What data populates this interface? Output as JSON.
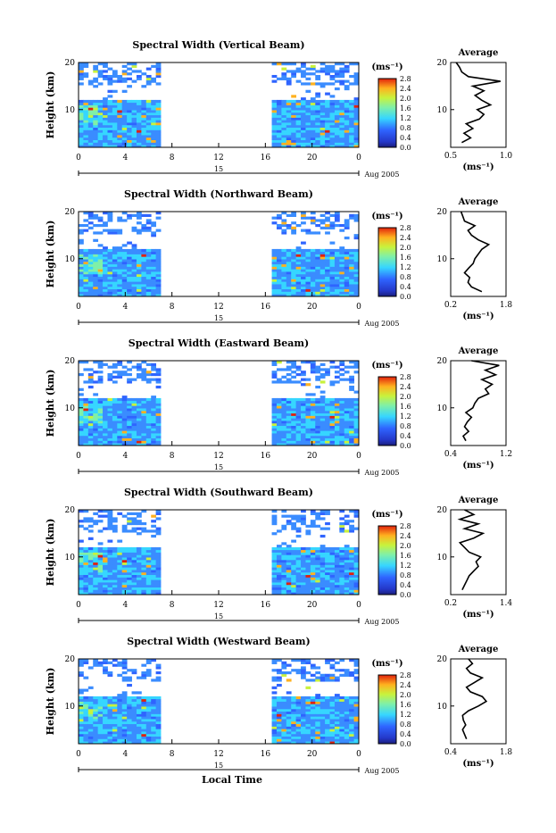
{
  "figure": {
    "xlabel": "Local Time",
    "colorbar_unit": "(ms⁻¹)",
    "colorbar_ticks": [
      "0.0",
      "0.4",
      "0.8",
      "1.2",
      "1.6",
      "2.0",
      "2.4",
      "2.8"
    ],
    "date_label": "Aug 2005",
    "day_label": "15",
    "height_label": "Height (km)",
    "profile_title": "Average",
    "profile_unit": "(ms⁻¹)",
    "colors": {
      "low": "#1b1e7a",
      "mid_low": "#2f64ff",
      "mid": "#36d6ff",
      "mid_high": "#c8f23c",
      "high": "#ffb11f",
      "max": "#e2210c"
    }
  },
  "chart_data": [
    {
      "type": "heatmap",
      "title": "Spectral Width (Vertical Beam)",
      "x_ticks": [
        "0",
        "4",
        "8",
        "12",
        "16",
        "20",
        "0"
      ],
      "y_ticks": [
        "10",
        "20"
      ],
      "xlim": [
        0,
        24
      ],
      "ylim": [
        2,
        20
      ],
      "data_gap_hours": [
        7,
        16.5
      ],
      "colorbar_range": [
        0.0,
        2.8
      ],
      "profile": {
        "title": "Average",
        "x_ticks": [
          "0.5",
          "1.0"
        ],
        "xlim": [
          0.5,
          1.0
        ],
        "heights_km": [
          3,
          4,
          5,
          6,
          7,
          8,
          9,
          10,
          11,
          12,
          13,
          14,
          15,
          16,
          17,
          18,
          19,
          20
        ],
        "values": [
          0.6,
          0.68,
          0.62,
          0.7,
          0.64,
          0.76,
          0.8,
          0.74,
          0.86,
          0.78,
          0.72,
          0.8,
          0.7,
          0.95,
          0.66,
          0.6,
          0.58,
          0.55
        ]
      }
    },
    {
      "type": "heatmap",
      "title": "Spectral Width (Northward Beam)",
      "x_ticks": [
        "0",
        "4",
        "8",
        "12",
        "16",
        "20",
        "0"
      ],
      "y_ticks": [
        "10",
        "20"
      ],
      "xlim": [
        0,
        24
      ],
      "ylim": [
        2,
        20
      ],
      "data_gap_hours": [
        7,
        16.5
      ],
      "colorbar_range": [
        0.0,
        2.8
      ],
      "profile": {
        "title": "Average",
        "x_ticks": [
          "0.2",
          "1.8"
        ],
        "xlim": [
          0.2,
          1.8
        ],
        "heights_km": [
          3,
          4,
          5,
          6,
          7,
          8,
          9,
          10,
          11,
          12,
          13,
          14,
          15,
          16,
          17,
          18,
          19,
          20
        ],
        "values": [
          1.1,
          0.8,
          0.7,
          0.75,
          0.6,
          0.72,
          0.85,
          0.9,
          1.0,
          1.1,
          1.3,
          1.0,
          0.8,
          0.7,
          0.9,
          0.6,
          0.55,
          0.5
        ]
      }
    },
    {
      "type": "heatmap",
      "title": "Spectral Width (Eastward Beam)",
      "x_ticks": [
        "0",
        "4",
        "8",
        "12",
        "16",
        "20",
        "0"
      ],
      "y_ticks": [
        "10",
        "20"
      ],
      "xlim": [
        0,
        24
      ],
      "ylim": [
        2,
        20
      ],
      "data_gap_hours": [
        7,
        16.5
      ],
      "colorbar_range": [
        0.0,
        2.8
      ],
      "profile": {
        "title": "Average",
        "x_ticks": [
          "0.4",
          "1.2"
        ],
        "xlim": [
          0.4,
          1.2
        ],
        "heights_km": [
          3,
          4,
          5,
          6,
          7,
          8,
          9,
          10,
          11,
          12,
          13,
          14,
          15,
          16,
          17,
          18,
          19,
          20
        ],
        "values": [
          0.62,
          0.58,
          0.66,
          0.6,
          0.64,
          0.7,
          0.62,
          0.72,
          0.75,
          0.8,
          0.95,
          0.9,
          1.0,
          0.85,
          1.05,
          0.9,
          1.1,
          0.7
        ]
      }
    },
    {
      "type": "heatmap",
      "title": "Spectral Width (Southward Beam)",
      "x_ticks": [
        "0",
        "4",
        "8",
        "12",
        "16",
        "20",
        "0"
      ],
      "y_ticks": [
        "10",
        "20"
      ],
      "xlim": [
        0,
        24
      ],
      "ylim": [
        2,
        20
      ],
      "data_gap_hours": [
        7,
        16.5
      ],
      "colorbar_range": [
        0.0,
        2.8
      ],
      "profile": {
        "title": "Average",
        "x_ticks": [
          "0.2",
          "1.4"
        ],
        "xlim": [
          0.2,
          1.4
        ],
        "heights_km": [
          3,
          4,
          5,
          6,
          7,
          8,
          9,
          10,
          11,
          12,
          13,
          14,
          15,
          16,
          17,
          18,
          19,
          20
        ],
        "values": [
          0.45,
          0.5,
          0.55,
          0.6,
          0.7,
          0.8,
          0.75,
          0.85,
          0.6,
          0.5,
          0.4,
          0.7,
          0.9,
          0.5,
          0.8,
          0.4,
          0.7,
          0.5
        ]
      }
    },
    {
      "type": "heatmap",
      "title": "Spectral Width (Westward Beam)",
      "x_ticks": [
        "0",
        "4",
        "8",
        "12",
        "16",
        "20",
        "0"
      ],
      "y_ticks": [
        "10",
        "20"
      ],
      "xlim": [
        0,
        24
      ],
      "ylim": [
        2,
        20
      ],
      "data_gap_hours": [
        7,
        16.5
      ],
      "colorbar_range": [
        0.0,
        2.8
      ],
      "profile": {
        "title": "Average",
        "x_ticks": [
          "0.4",
          "1.8"
        ],
        "xlim": [
          0.4,
          1.8
        ],
        "heights_km": [
          3,
          4,
          5,
          6,
          7,
          8,
          9,
          10,
          11,
          12,
          13,
          14,
          15,
          16,
          17,
          18,
          19,
          20
        ],
        "values": [
          0.8,
          0.75,
          0.7,
          0.78,
          0.72,
          0.7,
          0.85,
          1.1,
          1.3,
          1.2,
          0.9,
          0.8,
          1.0,
          1.2,
          0.9,
          0.8,
          0.95,
          0.85
        ]
      }
    }
  ]
}
